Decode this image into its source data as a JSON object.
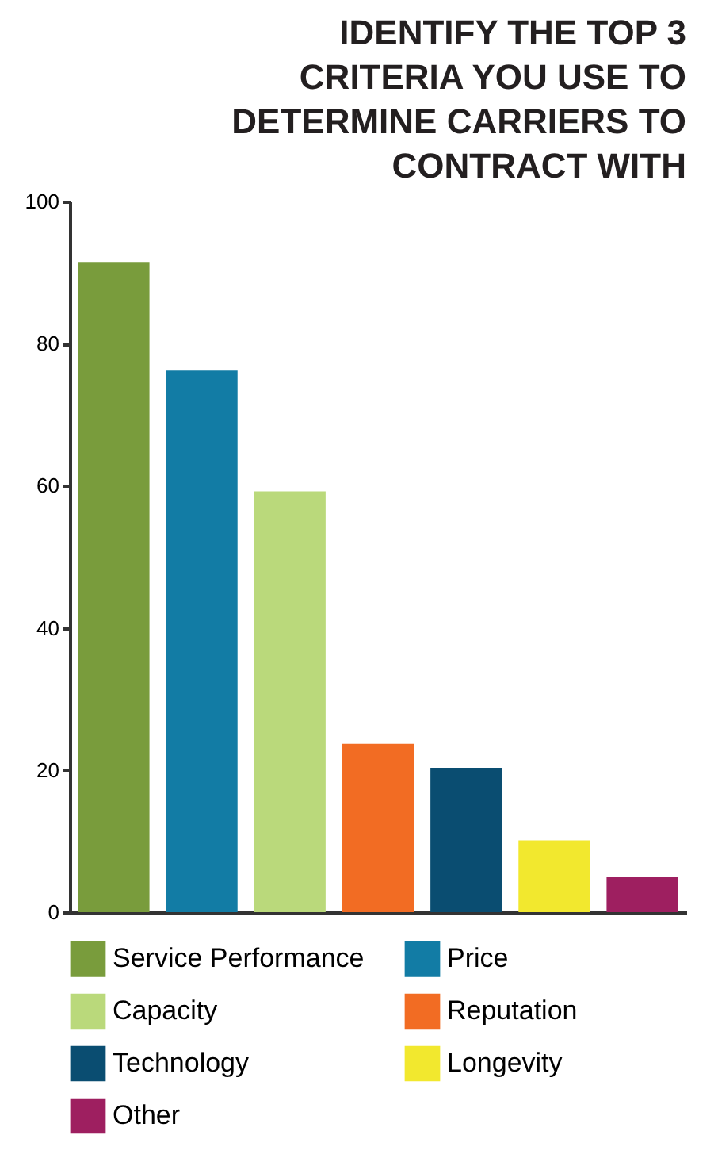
{
  "chart_data": {
    "type": "bar",
    "title": "IDENTIFY THE TOP 3 CRITERIA YOU USE TO DETERMINE CARRIERS TO CONTRACT WITH",
    "categories": [
      null,
      null,
      null,
      null,
      null,
      null,
      null
    ],
    "stacked": true,
    "series": [
      {
        "name": "Service Performance",
        "color": "#799c3c",
        "values": [
          91.5,
          null,
          null,
          null,
          null,
          null,
          null
        ]
      },
      {
        "name": "Price",
        "color": "#127ca5",
        "values": [
          null,
          76.2,
          null,
          null,
          null,
          null,
          null
        ]
      },
      {
        "name": "Capacity",
        "color": "#bad97b",
        "values": [
          null,
          null,
          59.2,
          null,
          null,
          null,
          null
        ]
      },
      {
        "name": "Reputation",
        "color": "#f26c23",
        "values": [
          null,
          null,
          null,
          23.7,
          null,
          null,
          null
        ]
      },
      {
        "name": "Technology",
        "color": "#0a4d71",
        "values": [
          null,
          null,
          null,
          null,
          20.3,
          null,
          null
        ]
      },
      {
        "name": "Longevity",
        "color": "#f2e82e",
        "values": [
          null,
          null,
          null,
          null,
          null,
          10.1,
          null
        ]
      },
      {
        "name": "Other",
        "color": "#9e1f60",
        "values": [
          null,
          null,
          null,
          null,
          null,
          null,
          4.9
        ]
      }
    ],
    "ylim": [
      0,
      100
    ],
    "yticks": [
      0,
      20,
      40,
      60,
      80,
      100
    ],
    "grid": false,
    "legend": "bottom",
    "tick_labels": "y"
  }
}
